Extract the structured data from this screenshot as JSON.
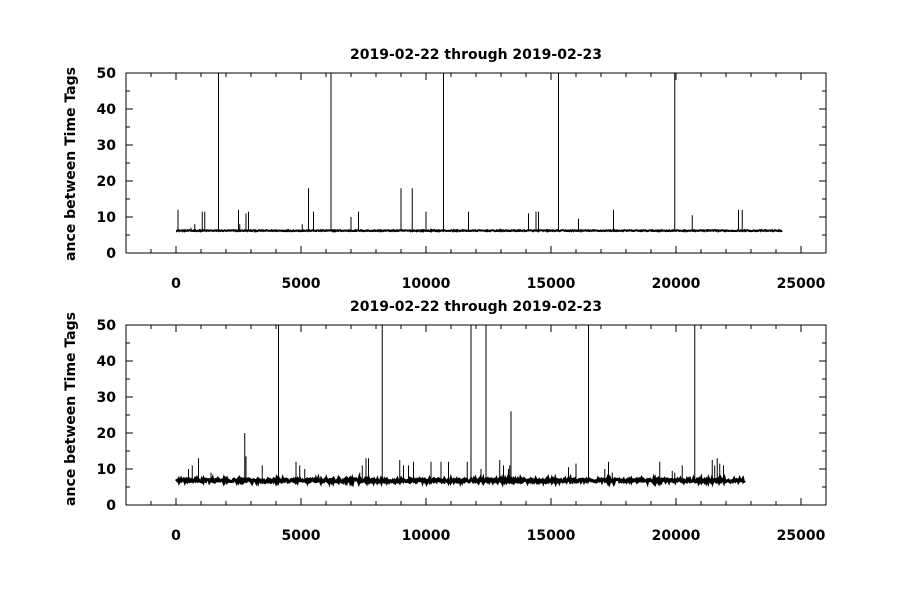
{
  "chart_data": [
    {
      "type": "line",
      "title": "2019-02-22 through 2019-02-23",
      "xlabel": "",
      "ylabel": "ance between Time Tags",
      "xlim": [
        -2000,
        26000
      ],
      "ylim": [
        0,
        50
      ],
      "xticks": [
        0,
        5000,
        10000,
        15000,
        20000,
        25000
      ],
      "yticks": [
        0,
        10,
        20,
        30,
        40,
        50
      ],
      "grid": false,
      "baseline": {
        "x_start": 0,
        "x_end": 24250,
        "y": 6.2,
        "noise": 0.15
      },
      "series": [
        {
          "values": [
            [
              80,
              12
            ],
            [
              600,
              7
            ],
            [
              750,
              8
            ],
            [
              1050,
              11.5
            ],
            [
              1150,
              11.5
            ],
            [
              1700,
              50
            ],
            [
              2500,
              12
            ],
            [
              2550,
              8
            ],
            [
              2800,
              11
            ],
            [
              2900,
              11.5
            ],
            [
              5050,
              8
            ],
            [
              5300,
              18
            ],
            [
              5500,
              11.5
            ],
            [
              6200,
              50
            ],
            [
              7000,
              10
            ],
            [
              7300,
              11.5
            ],
            [
              9000,
              18
            ],
            [
              9450,
              18
            ],
            [
              10000,
              11.5
            ],
            [
              10700,
              50
            ],
            [
              11700,
              11.5
            ],
            [
              14100,
              11
            ],
            [
              14400,
              11.5
            ],
            [
              14500,
              11.5
            ],
            [
              15300,
              50
            ],
            [
              16100,
              9.5
            ],
            [
              17500,
              12
            ],
            [
              19950,
              50
            ],
            [
              20650,
              10.5
            ],
            [
              22500,
              12
            ],
            [
              22650,
              12
            ]
          ]
        }
      ]
    },
    {
      "type": "line",
      "title": "2019-02-22 through 2019-02-23",
      "xlabel": "",
      "ylabel": "ance between Time Tags",
      "xlim": [
        -2000,
        26000
      ],
      "ylim": [
        0,
        50
      ],
      "xticks": [
        0,
        5000,
        10000,
        15000,
        20000,
        25000
      ],
      "yticks": [
        0,
        10,
        20,
        30,
        40,
        50
      ],
      "grid": false,
      "baseline": {
        "x_start": 0,
        "x_end": 22750,
        "y": 6.8,
        "noise": 0.45
      },
      "series": [
        {
          "values": [
            [
              500,
              10
            ],
            [
              650,
              11
            ],
            [
              900,
              13
            ],
            [
              1400,
              9
            ],
            [
              2750,
              20
            ],
            [
              2800,
              13.5
            ],
            [
              3450,
              11
            ],
            [
              4100,
              50
            ],
            [
              4800,
              12
            ],
            [
              4950,
              11
            ],
            [
              5150,
              10
            ],
            [
              7350,
              9
            ],
            [
              7450,
              11
            ],
            [
              7600,
              13
            ],
            [
              7700,
              13
            ],
            [
              8250,
              50
            ],
            [
              8950,
              12.5
            ],
            [
              9100,
              11
            ],
            [
              9300,
              11
            ],
            [
              9500,
              12
            ],
            [
              10200,
              12
            ],
            [
              10600,
              12
            ],
            [
              10900,
              12
            ],
            [
              11650,
              12
            ],
            [
              11800,
              50
            ],
            [
              12200,
              10
            ],
            [
              12400,
              50
            ],
            [
              12950,
              12.5
            ],
            [
              13100,
              11
            ],
            [
              13300,
              10
            ],
            [
              13350,
              11
            ],
            [
              13400,
              26
            ],
            [
              15700,
              10.5
            ],
            [
              16000,
              11.5
            ],
            [
              16500,
              50
            ],
            [
              17150,
              10
            ],
            [
              17300,
              12
            ],
            [
              17450,
              9
            ],
            [
              19350,
              12
            ],
            [
              19850,
              9.5
            ],
            [
              19950,
              9
            ],
            [
              20250,
              11
            ],
            [
              20750,
              50
            ],
            [
              21450,
              12.5
            ],
            [
              21550,
              11
            ],
            [
              21650,
              13
            ],
            [
              21750,
              11.5
            ],
            [
              21900,
              11
            ]
          ]
        }
      ]
    }
  ]
}
